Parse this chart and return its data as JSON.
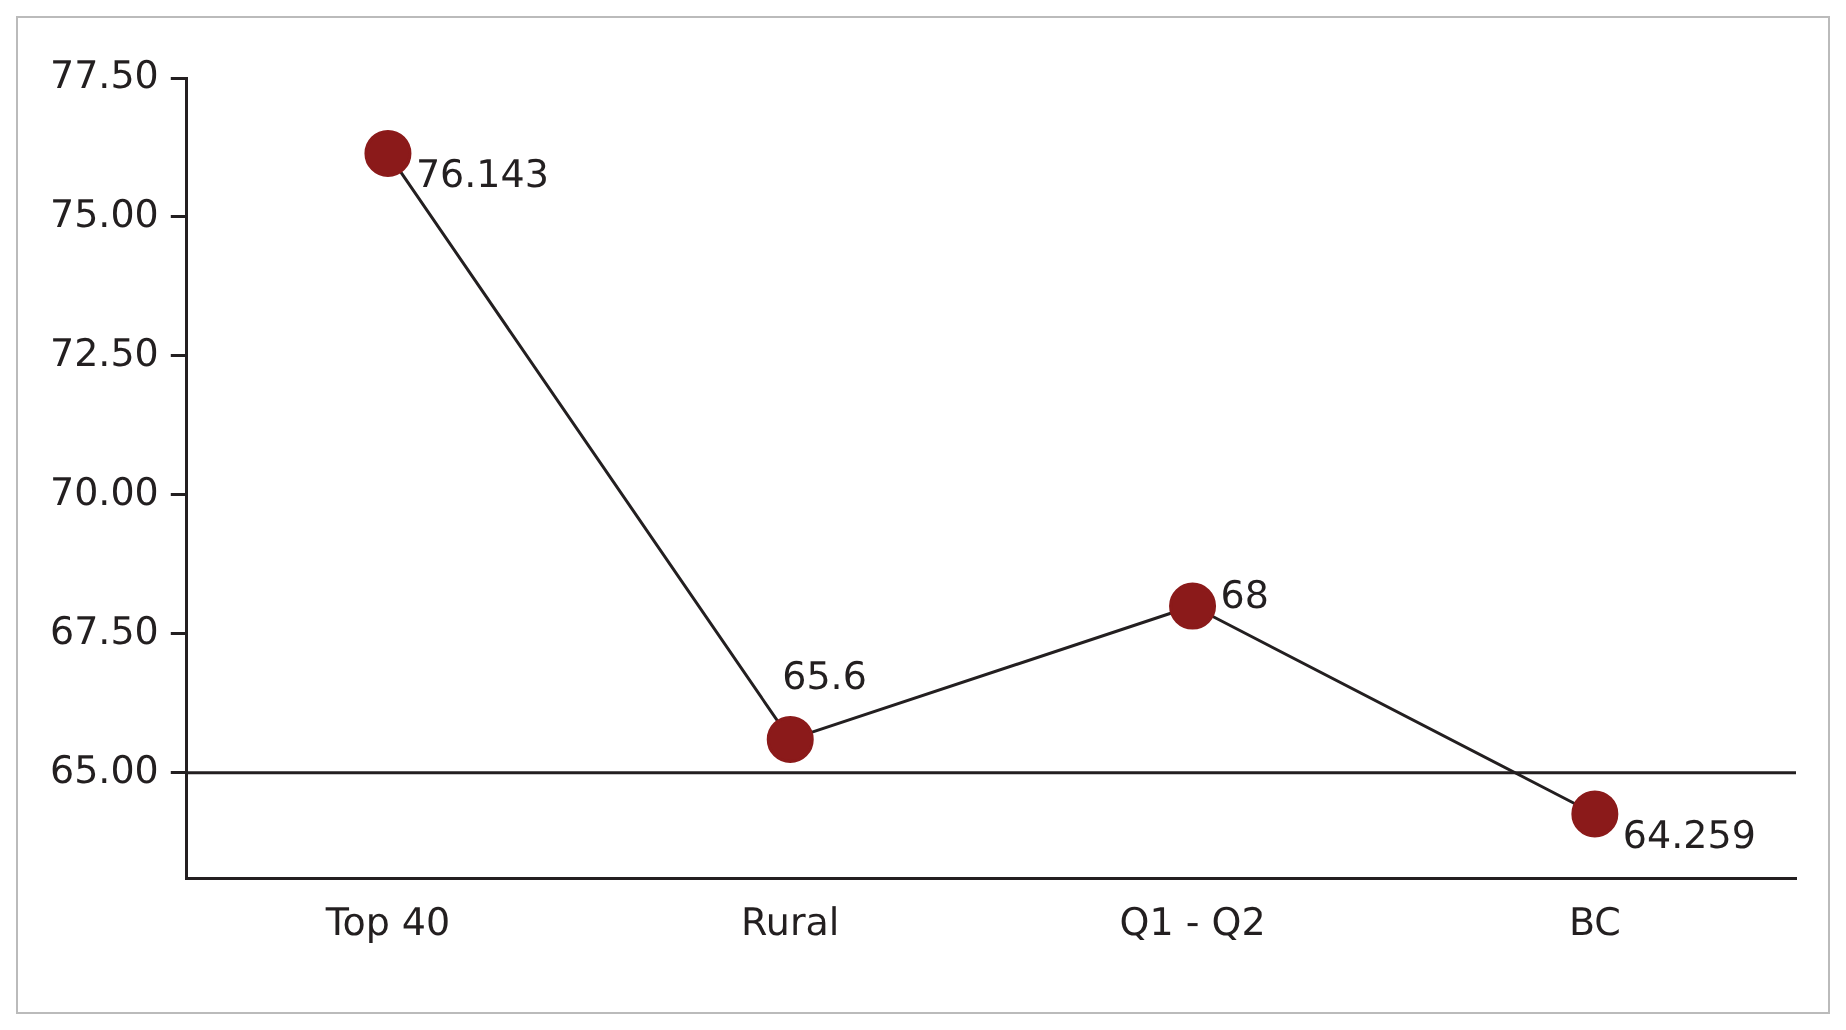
{
  "chart_data": {
    "type": "line",
    "categories": [
      "Top 40",
      "Rural",
      "Q1 - Q2",
      "BC"
    ],
    "series": [
      {
        "color": "#8b1a1a",
        "values": [
          76.143,
          65.6,
          68,
          64.259
        ]
      }
    ],
    "ylim": [
      63.1,
      77.5
    ],
    "yticks": [
      {
        "value": 65,
        "label": "65.00"
      },
      {
        "value": 67.5,
        "label": "67.50"
      },
      {
        "value": 70,
        "label": "70.00"
      },
      {
        "value": 72.5,
        "label": "72.50"
      },
      {
        "value": 75,
        "label": "75.00"
      },
      {
        "value": 77.5,
        "label": "77.50"
      }
    ],
    "ref_lines": [
      {
        "axis": "y",
        "value": 65,
        "color": "#231f20"
      }
    ],
    "data_labels": true,
    "marker": "circle",
    "line_style": "solid",
    "grid": false,
    "legend": false
  }
}
